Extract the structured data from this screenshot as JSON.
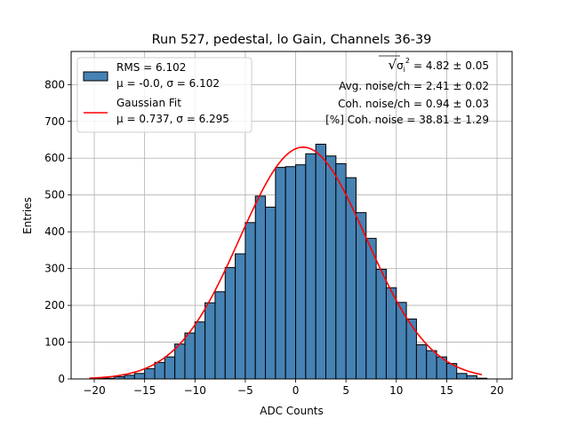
{
  "chart_data": {
    "type": "bar",
    "title": "Run 527, pedestal, lo Gain, Channels 36-39",
    "xlabel": "ADC Counts",
    "ylabel": "Entries",
    "xlim": [
      -22.3,
      21.5
    ],
    "ylim": [
      0,
      890
    ],
    "xticks": [
      -20,
      -15,
      -10,
      -5,
      0,
      5,
      10,
      15,
      20
    ],
    "yticks": [
      0,
      100,
      200,
      300,
      400,
      500,
      600,
      700,
      800
    ],
    "grid": true,
    "legend_position": "top-left",
    "bin_width": 1,
    "bin_left_edges": [
      -20,
      -19,
      -18,
      -17,
      -16,
      -15,
      -14,
      -13,
      -12,
      -11,
      -10,
      -9,
      -8,
      -7,
      -6,
      -5,
      -4,
      -3,
      -2,
      -1,
      0,
      1,
      2,
      3,
      4,
      5,
      6,
      7,
      8,
      9,
      10,
      11,
      12,
      13,
      14,
      15,
      16,
      17,
      18
    ],
    "counts": [
      1,
      2,
      6,
      10,
      15,
      28,
      45,
      60,
      95,
      125,
      155,
      207,
      237,
      303,
      340,
      425,
      497,
      467,
      575,
      577,
      582,
      612,
      638,
      606,
      585,
      547,
      452,
      382,
      298,
      248,
      208,
      163,
      93,
      77,
      60,
      42,
      15,
      9,
      2
    ],
    "fit_curve": {
      "name": "Gaussian Fit",
      "mu": 0.737,
      "sigma": 6.295,
      "amplitude": 630,
      "x_range": [
        -20.5,
        18.5
      ],
      "color": "#ff0000"
    },
    "bar_color": "#4682b4",
    "legend": [
      {
        "type": "patch",
        "line1": "RMS = 6.102",
        "line2": "μ = -0.0, σ = 6.102"
      },
      {
        "type": "line",
        "line1": "Gaussian Fit",
        "line2": "μ = 0.737, σ = 6.295"
      }
    ],
    "annotations": [
      {
        "sqrt_symbol": "√",
        "sigma_symbol": "σ",
        "sub": "i",
        "sup": "2",
        "text": "= 4.82 ± 0.05"
      },
      {
        "text": "Avg. noise/ch = 2.41 ± 0.02"
      },
      {
        "text": "Coh. noise/ch = 0.94 ± 0.03"
      },
      {
        "text": "[%] Coh. noise = 38.81 ± 1.29"
      }
    ]
  }
}
